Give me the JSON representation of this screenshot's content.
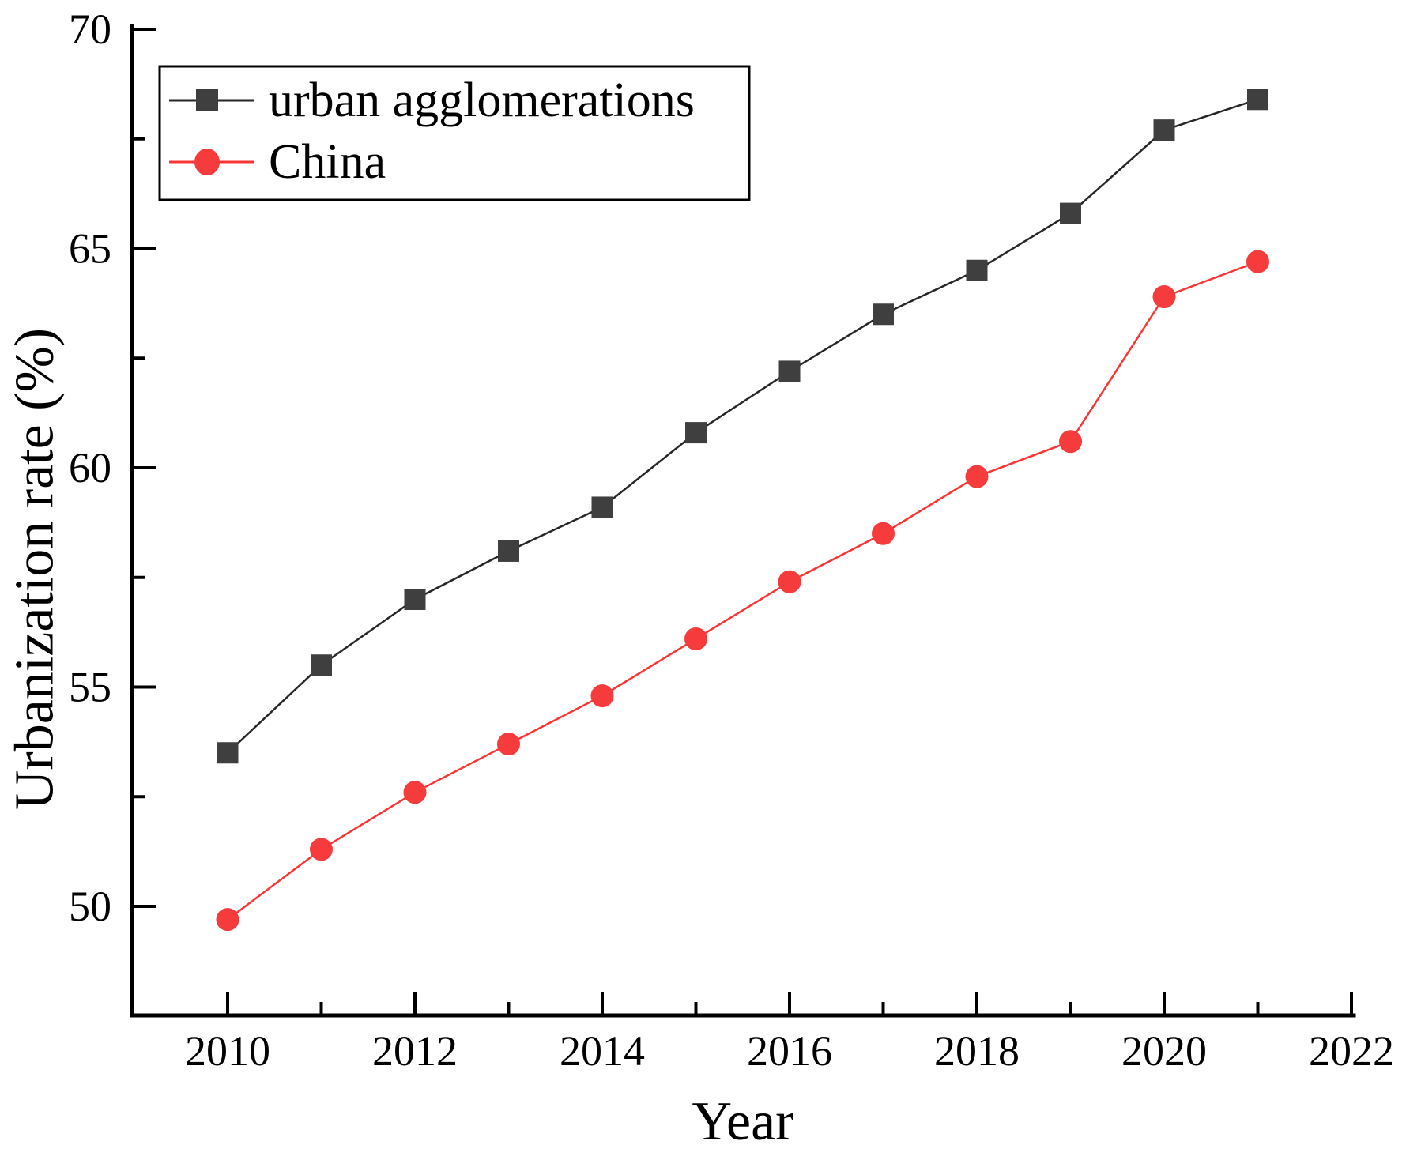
{
  "chart_data": {
    "type": "line",
    "title": "",
    "xlabel": "Year",
    "ylabel": "Urbanization rate (%)",
    "x": [
      2010,
      2011,
      2012,
      2013,
      2014,
      2015,
      2016,
      2017,
      2018,
      2019,
      2020,
      2021
    ],
    "series": [
      {
        "name": "urban agglomerations",
        "marker": "square",
        "marker_color": "#3f3f3f",
        "line_color": "#262626",
        "values": [
          53.5,
          55.5,
          57.0,
          58.1,
          59.1,
          60.8,
          62.2,
          63.5,
          64.5,
          65.8,
          67.7,
          68.4
        ]
      },
      {
        "name": "China",
        "marker": "circle",
        "marker_color": "#f53b3b",
        "line_color": "#fb3434",
        "values": [
          49.7,
          51.3,
          52.6,
          53.7,
          54.8,
          56.1,
          57.4,
          58.5,
          59.8,
          60.6,
          63.9,
          64.7
        ]
      }
    ],
    "x_axis": {
      "min": 2009,
      "max": 2022,
      "ticks_major": [
        2010,
        2012,
        2014,
        2016,
        2018,
        2020,
        2022
      ],
      "ticks_minor": [
        2011,
        2013,
        2015,
        2017,
        2019,
        2021
      ],
      "tick_labels": [
        "2010",
        "2012",
        "2014",
        "2016",
        "2018",
        "2020",
        "2022"
      ]
    },
    "y_axis": {
      "min": 47.5,
      "max": 70,
      "ticks_major": [
        50,
        55,
        60,
        65,
        70
      ],
      "ticks_minor": [
        52.5,
        57.5,
        62.5,
        67.5
      ],
      "tick_labels": [
        "50",
        "55",
        "60",
        "65",
        "70"
      ]
    },
    "grid": false,
    "legend_position": "upper-left",
    "colors": {
      "axis": "#000000",
      "text": "#000000",
      "urban_agglomerations": "#3f3f3f",
      "china": "#f53b3b"
    }
  }
}
